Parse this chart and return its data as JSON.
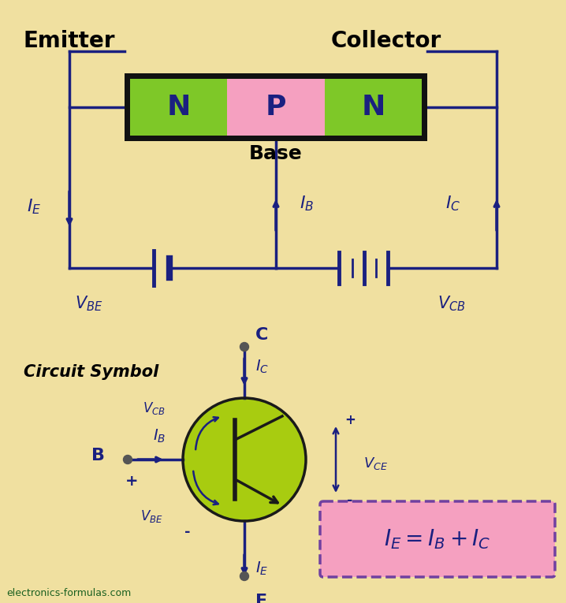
{
  "bg_color": "#f0e0a0",
  "title_emitter": "Emitter",
  "title_collector": "Collector",
  "title_base": "Base",
  "npn_colors": [
    "#7ec828",
    "#f5a0c0",
    "#7ec828"
  ],
  "npn_letters": [
    "N",
    "P",
    "N"
  ],
  "npn_letter_color": "#1a2080",
  "npn_border_color": "#111111",
  "wire_color": "#1a2080",
  "label_color": "#1a2080",
  "transistor_fill": "#a8cc10",
  "formula_bg": "#f5a0c0",
  "formula_border": "#7040a0",
  "circuit_symbol_text": "Circuit Symbol",
  "website": "electronics-formulas.com"
}
